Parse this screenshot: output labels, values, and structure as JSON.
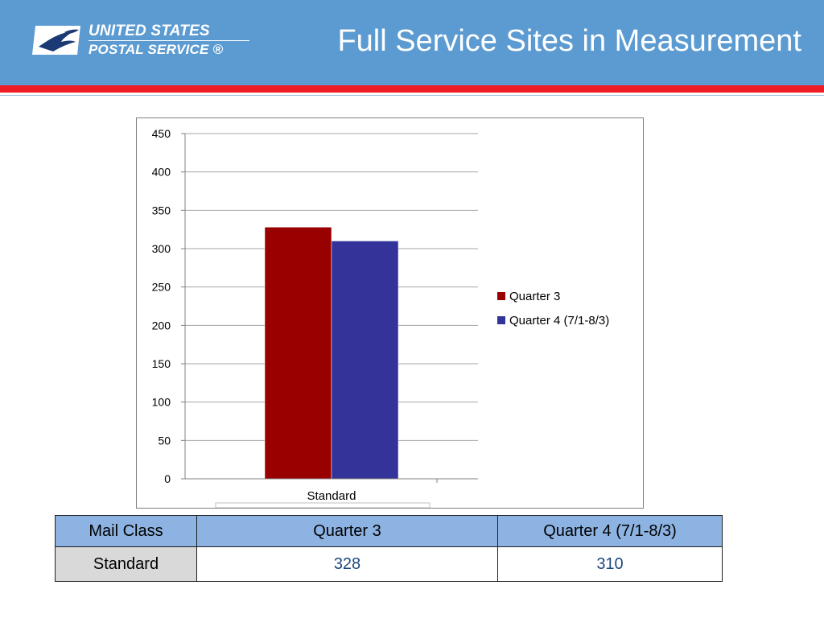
{
  "header": {
    "logo_line1": "UNITED STATES",
    "logo_line2": "POSTAL SERVICE ®",
    "title": "Full Service Sites in Measurement",
    "colors": {
      "header_bg": "#5b9bd1",
      "accent_red": "#ee1c25"
    },
    "logo_icon": "eagle-icon"
  },
  "chart_data": {
    "type": "bar",
    "categories": [
      "Standard"
    ],
    "series": [
      {
        "name": "Quarter 3",
        "values": [
          328
        ],
        "color": "#990000"
      },
      {
        "name": "Quarter 4 (7/1-8/3)",
        "values": [
          310
        ],
        "color": "#333399"
      }
    ],
    "title": "",
    "xlabel": "",
    "ylabel": "",
    "ylim": [
      0,
      450
    ],
    "yticks": [
      0,
      50,
      100,
      150,
      200,
      250,
      300,
      350,
      400,
      450
    ],
    "grid": true,
    "legend": "right"
  },
  "table": {
    "headers": [
      "Mail Class",
      "Quarter 3",
      "Quarter 4 (7/1-8/3)"
    ],
    "rows": [
      [
        "Standard",
        "328",
        "310"
      ]
    ]
  }
}
